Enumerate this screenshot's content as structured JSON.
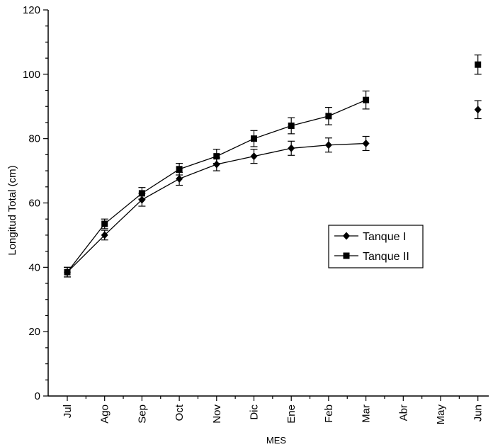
{
  "chart_data": {
    "type": "line",
    "title": "",
    "xlabel": "MES",
    "ylabel": "Longitud Total (cm)",
    "categories": [
      "Jul",
      "Ago",
      "Sep",
      "Oct",
      "Nov",
      "Dic",
      "Ene",
      "Feb",
      "Mar",
      "Abr",
      "May",
      "Jun"
    ],
    "ylim": [
      0,
      120
    ],
    "yticks": [
      "0",
      "20",
      "40",
      "60",
      "80",
      "100",
      "120"
    ],
    "grid": false,
    "legend_position": "right-middle",
    "series": [
      {
        "name": "Tanque I",
        "marker": "diamond",
        "values": [
          38.5,
          50,
          61,
          67.5,
          72,
          74.5,
          77,
          78,
          78.5,
          null,
          null,
          89
        ],
        "errors": [
          1.5,
          1.5,
          2,
          2,
          2,
          2.2,
          2.2,
          2.2,
          2.2,
          null,
          null,
          2.8
        ]
      },
      {
        "name": "Tanque II",
        "marker": "square",
        "values": [
          38.5,
          53.5,
          63,
          70.5,
          74.5,
          80,
          84,
          87,
          92,
          null,
          null,
          103
        ],
        "errors": [
          1.5,
          1.5,
          1.8,
          1.8,
          2.2,
          2.5,
          2.5,
          2.7,
          2.8,
          null,
          null,
          3
        ]
      }
    ]
  }
}
